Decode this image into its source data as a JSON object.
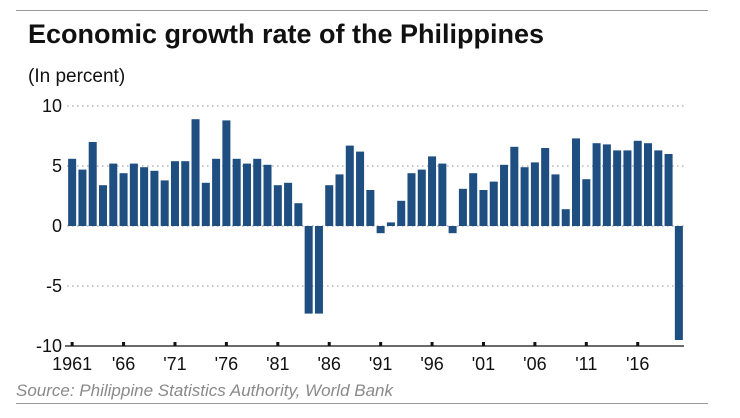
{
  "header": {
    "title": "Economic growth rate of the Philippines",
    "subtitle": "(In percent)"
  },
  "footer": {
    "source": "Source: Philippine Statistics Authority, World Bank"
  },
  "colors": {
    "bar": "#1f4e80",
    "gridline": "#b5b5b5",
    "text": "#111111"
  },
  "chart_data": {
    "type": "bar",
    "title": "Economic growth rate of the Philippines",
    "ylabel": "(In percent)",
    "xlabel": "",
    "ylim": [
      -10,
      10
    ],
    "y_ticks": [
      {
        "value": 10,
        "label": "10"
      },
      {
        "value": 5,
        "label": "5"
      },
      {
        "value": 0,
        "label": "0"
      },
      {
        "value": -5,
        "label": "-5"
      },
      {
        "value": -10,
        "label": "-10"
      }
    ],
    "x_tick_labels": [
      "1961",
      "'66",
      "'71",
      "'76",
      "'81",
      "'86",
      "'91",
      "'96",
      "'01",
      "'06",
      "'11",
      "'16"
    ],
    "x_tick_years": [
      1961,
      1966,
      1971,
      1976,
      1981,
      1986,
      1991,
      1996,
      2001,
      2006,
      2011,
      2016
    ],
    "grid": "horizontal dotted",
    "categories": [
      1961,
      1962,
      1963,
      1964,
      1965,
      1966,
      1967,
      1968,
      1969,
      1970,
      1971,
      1972,
      1973,
      1974,
      1975,
      1976,
      1977,
      1978,
      1979,
      1980,
      1981,
      1982,
      1983,
      1984,
      1985,
      1986,
      1987,
      1988,
      1989,
      1990,
      1991,
      1992,
      1993,
      1994,
      1995,
      1996,
      1997,
      1998,
      1999,
      2000,
      2001,
      2002,
      2003,
      2004,
      2005,
      2006,
      2007,
      2008,
      2009,
      2010,
      2011,
      2012,
      2013,
      2014,
      2015,
      2016,
      2017,
      2018,
      2019,
      2020
    ],
    "values": [
      5.6,
      4.7,
      7.0,
      3.4,
      5.2,
      4.4,
      5.2,
      4.9,
      4.6,
      3.8,
      5.4,
      5.4,
      8.9,
      3.6,
      5.6,
      8.8,
      5.6,
      5.2,
      5.6,
      5.1,
      3.4,
      3.6,
      1.9,
      -7.3,
      -7.3,
      3.4,
      4.3,
      6.7,
      6.2,
      3.0,
      -0.6,
      0.3,
      2.1,
      4.4,
      4.7,
      5.8,
      5.2,
      -0.6,
      3.1,
      4.4,
      3.0,
      3.7,
      5.1,
      6.6,
      4.9,
      5.3,
      6.5,
      4.3,
      1.4,
      7.3,
      3.9,
      6.9,
      6.8,
      6.3,
      6.3,
      7.1,
      6.9,
      6.3,
      6.0,
      -9.5
    ]
  }
}
